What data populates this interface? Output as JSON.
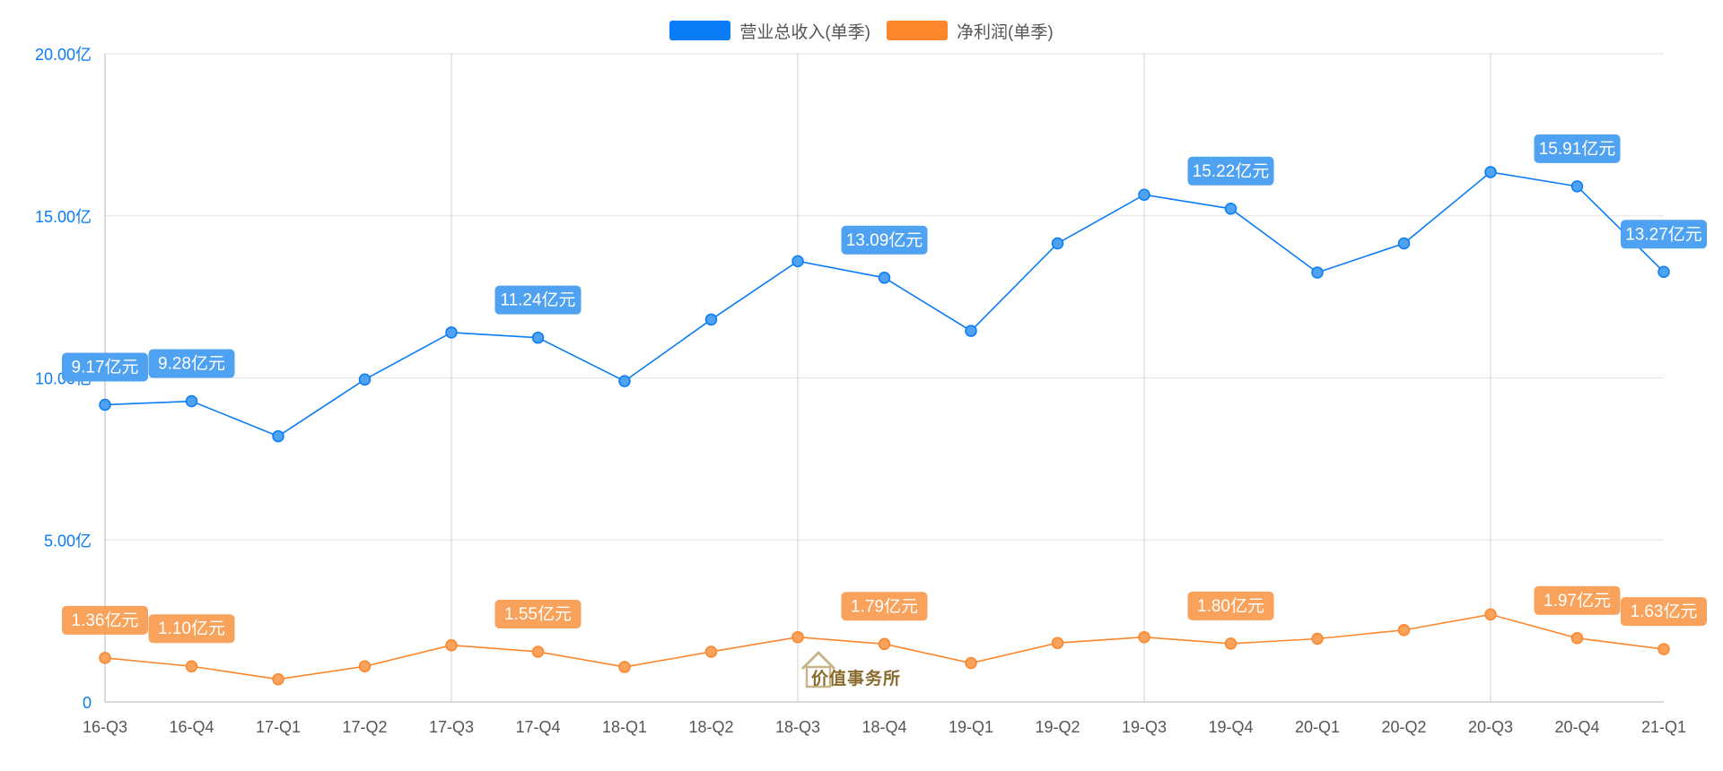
{
  "legend": {
    "revenue": {
      "label": "营业总收入(单季)",
      "color": "#0a7cf5"
    },
    "profit": {
      "label": "净利润(单季)",
      "color": "#fb862c"
    }
  },
  "watermark": {
    "text": "价值事务所"
  },
  "chart_data": {
    "type": "line",
    "categories": [
      "16-Q3",
      "16-Q4",
      "17-Q1",
      "17-Q2",
      "17-Q3",
      "17-Q4",
      "18-Q1",
      "18-Q2",
      "18-Q3",
      "18-Q4",
      "19-Q1",
      "19-Q2",
      "19-Q3",
      "19-Q4",
      "20-Q1",
      "20-Q2",
      "20-Q3",
      "20-Q4",
      "21-Q1"
    ],
    "ylim": [
      0,
      20
    ],
    "yticks": [
      0,
      5,
      10,
      15,
      20
    ],
    "ytick_labels": [
      "0",
      "5.00亿",
      "10.00亿",
      "15.00亿",
      "20.00亿"
    ],
    "grid": {
      "horizontal": true,
      "vertical_every": 4
    },
    "legend_position": "top-center",
    "series": [
      {
        "name": "营业总收入(单季)",
        "color": "#0a7cf5",
        "label_bg": "#4fa1f1",
        "values": [
          9.17,
          9.28,
          8.2,
          9.95,
          11.4,
          11.24,
          9.9,
          11.8,
          13.6,
          13.09,
          11.45,
          14.15,
          15.65,
          15.22,
          13.25,
          14.15,
          16.35,
          15.91,
          13.27
        ],
        "labels": [
          {
            "index": 0,
            "text": "9.17亿元"
          },
          {
            "index": 1,
            "text": "9.28亿元"
          },
          {
            "index": 5,
            "text": "11.24亿元"
          },
          {
            "index": 9,
            "text": "13.09亿元"
          },
          {
            "index": 13,
            "text": "15.22亿元"
          },
          {
            "index": 17,
            "text": "15.91亿元"
          },
          {
            "index": 18,
            "text": "13.27亿元"
          }
        ]
      },
      {
        "name": "净利润(单季)",
        "color": "#fb862c",
        "label_bg": "#f9a25b",
        "values": [
          1.36,
          1.1,
          0.7,
          1.1,
          1.75,
          1.55,
          1.08,
          1.55,
          2.0,
          1.79,
          1.2,
          1.82,
          2.0,
          1.8,
          1.95,
          2.22,
          2.7,
          1.97,
          1.63
        ],
        "labels": [
          {
            "index": 0,
            "text": "1.36亿元"
          },
          {
            "index": 1,
            "text": "1.10亿元"
          },
          {
            "index": 5,
            "text": "1.55亿元"
          },
          {
            "index": 9,
            "text": "1.79亿元"
          },
          {
            "index": 13,
            "text": "1.80亿元"
          },
          {
            "index": 17,
            "text": "1.97亿元"
          },
          {
            "index": 18,
            "text": "1.63亿元"
          }
        ]
      }
    ]
  }
}
